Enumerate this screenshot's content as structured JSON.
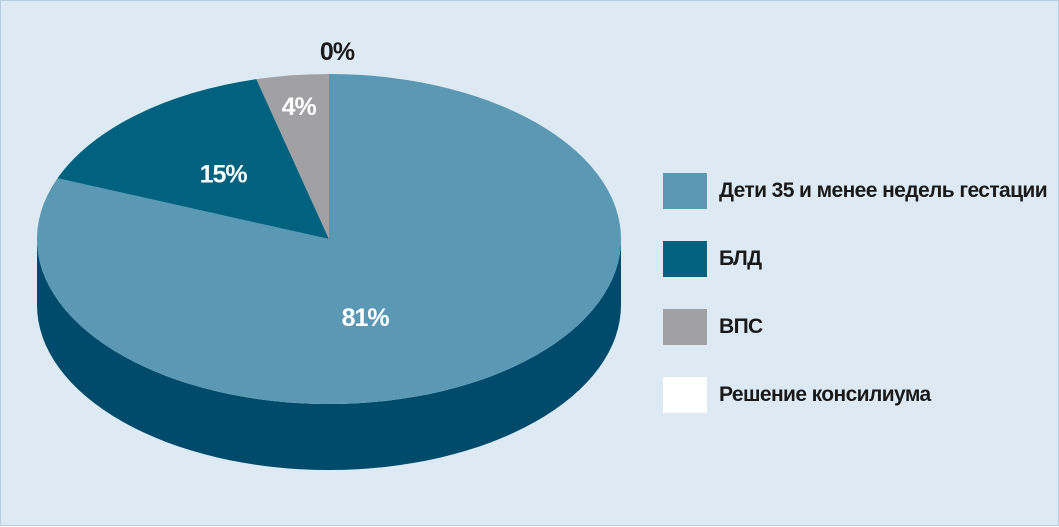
{
  "chart_data": {
    "type": "pie",
    "style": "3d-pie",
    "title": "",
    "slices": [
      {
        "label": "Дети 35 и менее недель гестации",
        "value": 81,
        "display": "81%",
        "color": "#5b98b4",
        "side_color": "#004b6b"
      },
      {
        "label": "БЛД",
        "value": 15,
        "display": "15%",
        "color": "#00627f",
        "side_color": "#004b6b"
      },
      {
        "label": "ВПС",
        "value": 4,
        "display": "4%",
        "color": "#a1a1a3",
        "side_color": "#6e6e70"
      },
      {
        "label": "Решение консилиума",
        "value": 0,
        "display": "0%",
        "color": "#ffffff",
        "side_color": "#ffffff"
      }
    ],
    "legend_position": "right"
  },
  "colors": {
    "background": "#deeaf3",
    "side": "#004b6b",
    "label_on_dark": "#ffffff",
    "label_outside": "#1a1a1a"
  }
}
